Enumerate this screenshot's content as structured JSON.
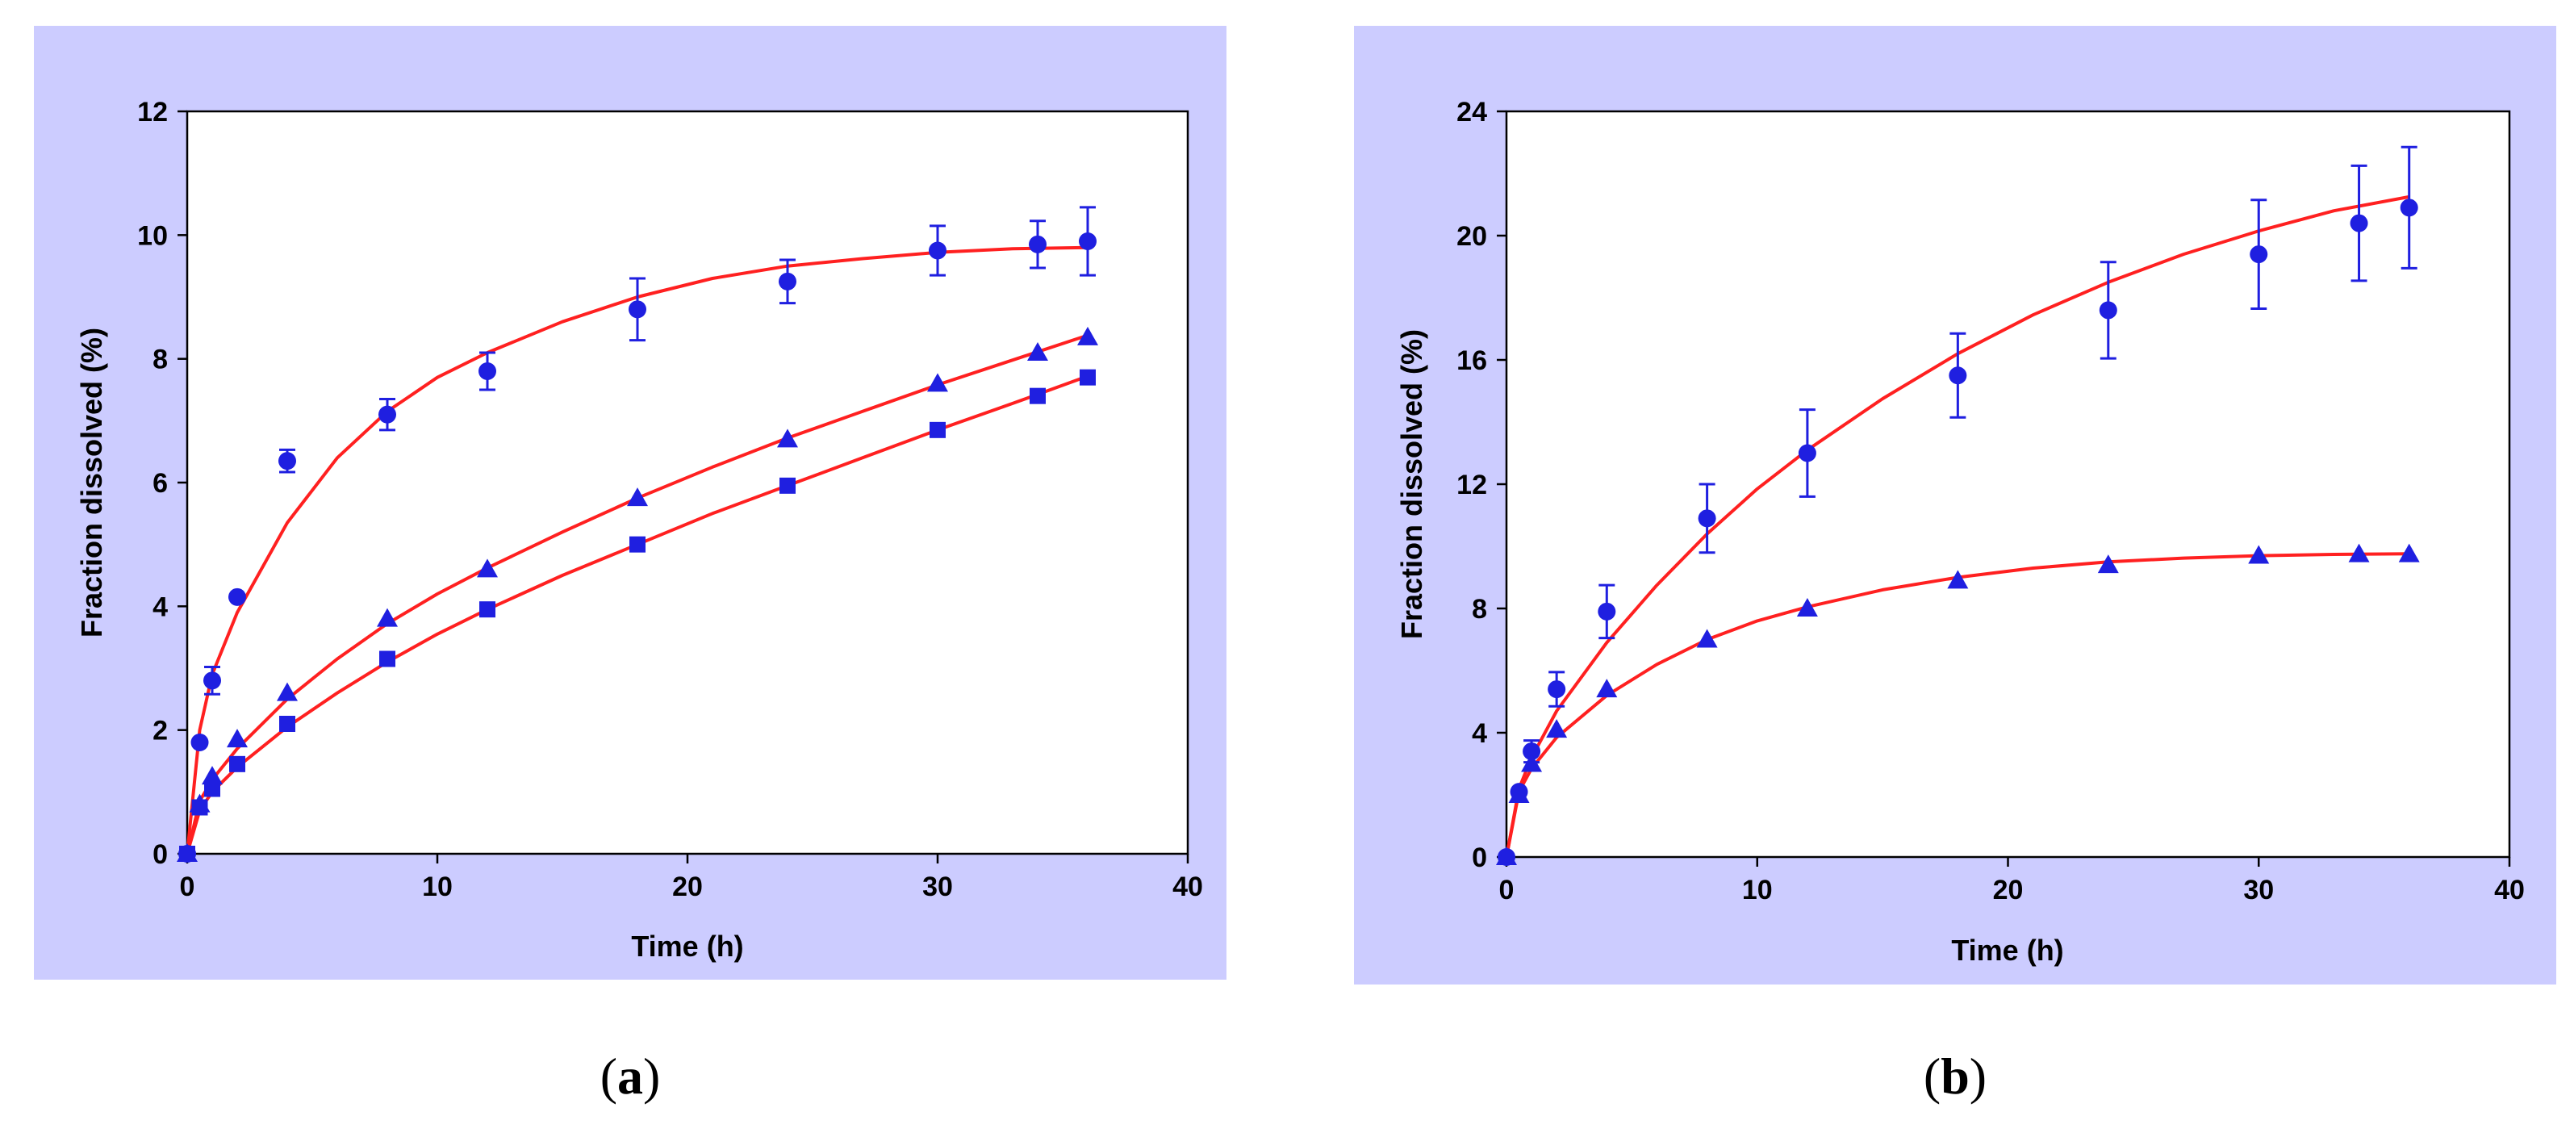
{
  "chart_data": [
    {
      "type": "scatter",
      "panel_label": "a",
      "xlabel": "Time (h)",
      "ylabel": "Fraction dissolved (%)",
      "xlim": [
        0,
        40
      ],
      "ylim": [
        0,
        12
      ],
      "xticks": [
        0,
        10,
        20,
        30,
        40
      ],
      "yticks": [
        0,
        2,
        4,
        6,
        8,
        10,
        12
      ],
      "background": "#ccccff",
      "marker_color": "#1f1fe0",
      "fit_color": "#ff2020",
      "grid": false,
      "series": [
        {
          "name": "circles",
          "marker": "circle",
          "x": [
            0,
            0.5,
            1,
            2,
            4,
            8,
            12,
            18,
            24,
            30,
            34,
            36
          ],
          "y": [
            0,
            1.8,
            2.8,
            4.15,
            6.35,
            7.1,
            7.8,
            8.8,
            9.25,
            9.75,
            9.85,
            9.9
          ],
          "err": [
            0,
            0,
            0.22,
            0,
            0.18,
            0.25,
            0.3,
            0.5,
            0.35,
            0.4,
            0.38,
            0.55
          ],
          "fit": {
            "x": [
              0,
              0.5,
              1,
              2,
              4,
              6,
              8,
              10,
              12,
              15,
              18,
              21,
              24,
              27,
              30,
              33,
              36
            ],
            "y": [
              0,
              2.0,
              2.9,
              3.9,
              5.35,
              6.4,
              7.15,
              7.7,
              8.1,
              8.6,
              9.0,
              9.3,
              9.5,
              9.62,
              9.72,
              9.78,
              9.8
            ]
          }
        },
        {
          "name": "triangles",
          "marker": "triangle",
          "x": [
            0,
            0.5,
            1,
            2,
            4,
            8,
            12,
            18,
            24,
            30,
            34,
            36
          ],
          "y": [
            0,
            0.8,
            1.25,
            1.85,
            2.6,
            3.8,
            4.6,
            5.75,
            6.7,
            7.6,
            8.1,
            8.35
          ],
          "fit": {
            "x": [
              0,
              0.5,
              1,
              2,
              4,
              6,
              8,
              10,
              12,
              15,
              18,
              21,
              24,
              27,
              30,
              33,
              36
            ],
            "y": [
              0,
              0.85,
              1.2,
              1.7,
              2.5,
              3.15,
              3.72,
              4.2,
              4.62,
              5.2,
              5.75,
              6.25,
              6.72,
              7.15,
              7.58,
              7.98,
              8.38
            ]
          }
        },
        {
          "name": "squares",
          "marker": "square",
          "x": [
            0,
            0.5,
            1,
            2,
            4,
            8,
            12,
            18,
            24,
            30,
            34,
            36
          ],
          "y": [
            0,
            0.75,
            1.05,
            1.45,
            2.1,
            3.15,
            3.95,
            5.0,
            5.95,
            6.85,
            7.4,
            7.7
          ],
          "fit": {
            "x": [
              0,
              0.5,
              1,
              2,
              4,
              6,
              8,
              10,
              12,
              15,
              18,
              21,
              24,
              27,
              30,
              33,
              36
            ],
            "y": [
              0,
              0.7,
              1.0,
              1.4,
              2.05,
              2.6,
              3.1,
              3.55,
              3.95,
              4.5,
              5.0,
              5.5,
              5.95,
              6.4,
              6.85,
              7.28,
              7.72
            ]
          }
        }
      ]
    },
    {
      "type": "scatter",
      "panel_label": "b",
      "xlabel": "Time (h)",
      "ylabel": "Fraction dissolved (%)",
      "xlim": [
        0,
        40
      ],
      "ylim": [
        0,
        24
      ],
      "xticks": [
        0,
        10,
        20,
        30,
        40
      ],
      "yticks": [
        0,
        4,
        8,
        12,
        16,
        20,
        24
      ],
      "background": "#ccccff",
      "marker_color": "#1f1fe0",
      "fit_color": "#ff2020",
      "grid": false,
      "series": [
        {
          "name": "circles",
          "marker": "circle",
          "x": [
            0,
            0.5,
            1,
            2,
            4,
            8,
            12,
            18,
            24,
            30,
            34,
            36
          ],
          "y": [
            0,
            2.1,
            3.4,
            5.4,
            7.9,
            10.9,
            13.0,
            15.5,
            17.6,
            19.4,
            20.4,
            20.9
          ],
          "err": [
            0,
            0,
            0.35,
            0.55,
            0.85,
            1.1,
            1.4,
            1.35,
            1.55,
            1.75,
            1.85,
            1.95
          ],
          "fit": {
            "x": [
              0,
              0.5,
              1,
              2,
              4,
              6,
              8,
              10,
              12,
              15,
              18,
              21,
              24,
              27,
              30,
              33,
              36
            ],
            "y": [
              0,
              2.2,
              3.2,
              4.7,
              6.9,
              8.75,
              10.4,
              11.85,
              13.1,
              14.75,
              16.2,
              17.45,
              18.5,
              19.4,
              20.15,
              20.8,
              21.25
            ]
          }
        },
        {
          "name": "triangles",
          "marker": "triangle",
          "x": [
            0,
            0.5,
            1,
            2,
            4,
            8,
            12,
            18,
            24,
            30,
            34,
            36
          ],
          "y": [
            0,
            2.0,
            3.0,
            4.1,
            5.4,
            7.0,
            8.0,
            8.9,
            9.4,
            9.7,
            9.75,
            9.75
          ],
          "fit": {
            "x": [
              0,
              0.5,
              1,
              2,
              4,
              6,
              8,
              10,
              12,
              15,
              18,
              21,
              24,
              27,
              30,
              33,
              36
            ],
            "y": [
              0,
              2.1,
              2.85,
              3.85,
              5.2,
              6.2,
              7.0,
              7.6,
              8.05,
              8.6,
              9.0,
              9.3,
              9.5,
              9.62,
              9.7,
              9.74,
              9.76
            ]
          }
        }
      ]
    }
  ],
  "captions": {
    "a": {
      "open": "(",
      "letter": "a",
      "close": ")"
    },
    "b": {
      "open": "(",
      "letter": "b",
      "close": ")"
    }
  }
}
